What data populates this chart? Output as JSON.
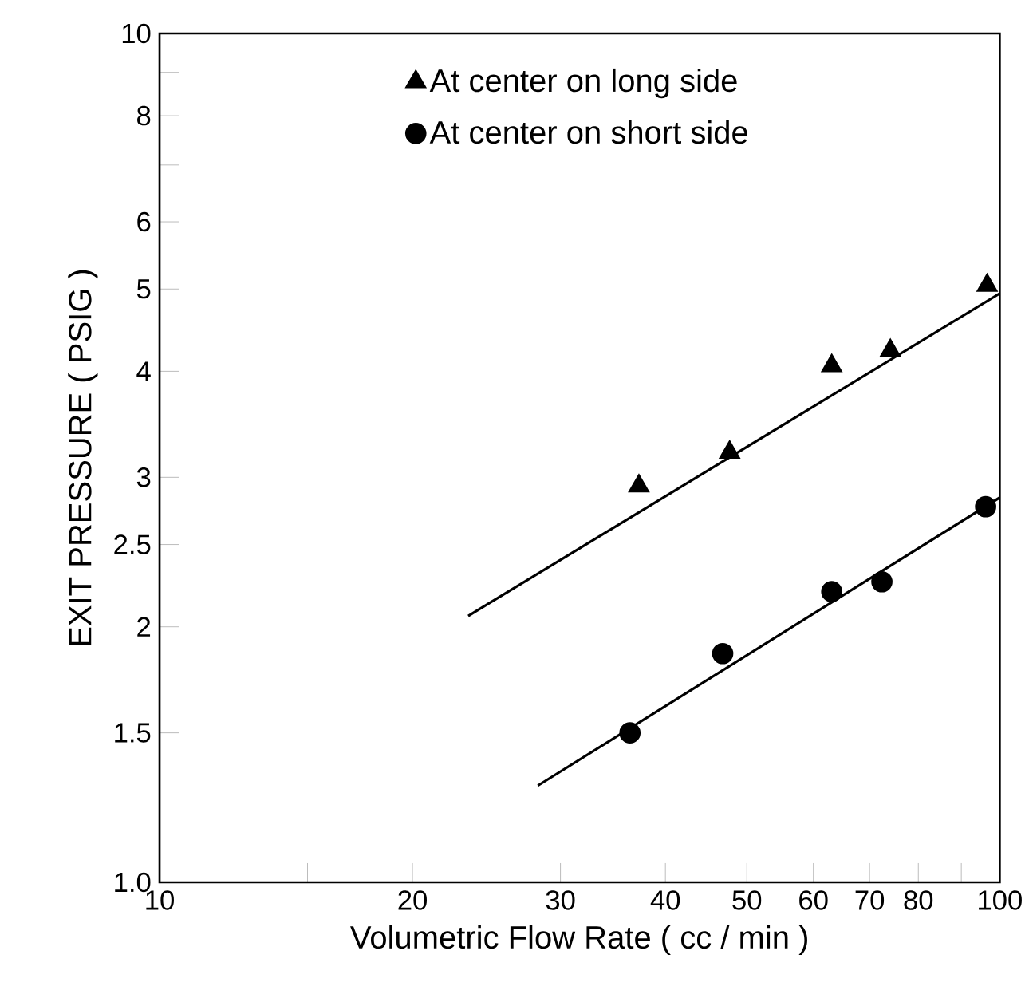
{
  "chart_data": {
    "type": "scatter",
    "xlabel": "Volumetric Flow Rate ( cc / min )",
    "ylabel": "EXIT PRESSURE ( PSIG )",
    "log": "xy",
    "legend": "top",
    "xlim": [
      10,
      100
    ],
    "ylim": [
      1,
      10
    ],
    "xticks": [
      10,
      {
        "value": 15,
        "label": null
      },
      20,
      30,
      40,
      50,
      60,
      70,
      80,
      {
        "value": 90,
        "label": null
      },
      100
    ],
    "yticks": [
      {
        "value": 1,
        "label": "1.0"
      },
      1.5,
      2,
      2.5,
      3,
      4,
      5,
      6,
      {
        "value": 7,
        "label": null
      },
      8,
      {
        "value": 9,
        "label": null
      },
      10
    ],
    "series": [
      {
        "name": "At center on long side",
        "color": "#000000",
        "marker": "triangle",
        "x": [
          37.2,
          47.7,
          63.1,
          74.1,
          96.6
        ],
        "values": [
          2.93,
          3.21,
          4.06,
          4.23,
          5.05
        ]
      },
      {
        "name": "At center on short side",
        "color": "#000000",
        "marker": "circle",
        "x": [
          36.3,
          46.8,
          63.1,
          72.4,
          96.2
        ],
        "values": [
          1.5,
          1.86,
          2.2,
          2.26,
          2.77
        ]
      },
      {
        "type": "line",
        "color": "#000000",
        "x": [
          23.3,
          100
        ],
        "values": [
          2.06,
          4.94
        ]
      },
      {
        "type": "line",
        "color": "#000000",
        "x": [
          28.2,
          100
        ],
        "values": [
          1.3,
          2.84
        ]
      }
    ]
  }
}
